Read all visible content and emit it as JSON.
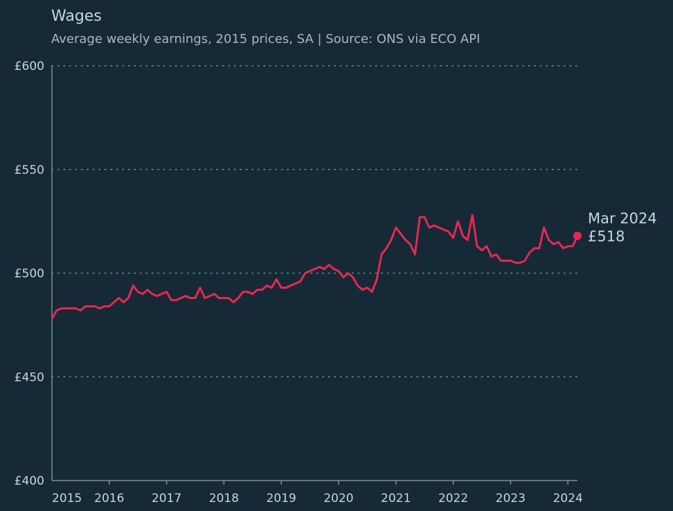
{
  "chart_data": {
    "type": "line",
    "title": "Wages",
    "subtitle": "Average weekly earnings, 2015 prices, SA | Source: ONS via ECO API",
    "xlabel": "",
    "ylabel": "",
    "ylim": [
      400,
      600
    ],
    "yticks": [
      400,
      450,
      500,
      550,
      600
    ],
    "ytick_labels": [
      "£400",
      "£450",
      "£500",
      "£550",
      "£600"
    ],
    "xlim": [
      "2015-01",
      "2024-03"
    ],
    "xticks": [
      "2015",
      "2016",
      "2017",
      "2018",
      "2019",
      "2020",
      "2021",
      "2022",
      "2023",
      "2024"
    ],
    "grid": "horizontal dotted",
    "series": [
      {
        "color": "#e8294f",
        "points": [
          [
            "2015-01",
            478
          ],
          [
            "2015-02",
            482
          ],
          [
            "2015-03",
            483
          ],
          [
            "2015-04",
            483
          ],
          [
            "2015-05",
            483
          ],
          [
            "2015-06",
            483
          ],
          [
            "2015-07",
            482
          ],
          [
            "2015-08",
            484
          ],
          [
            "2015-09",
            484
          ],
          [
            "2015-10",
            484
          ],
          [
            "2015-11",
            483
          ],
          [
            "2015-12",
            484
          ],
          [
            "2016-01",
            484
          ],
          [
            "2016-02",
            486
          ],
          [
            "2016-03",
            488
          ],
          [
            "2016-04",
            486
          ],
          [
            "2016-05",
            488
          ],
          [
            "2016-06",
            494
          ],
          [
            "2016-07",
            491
          ],
          [
            "2016-08",
            490
          ],
          [
            "2016-09",
            492
          ],
          [
            "2016-10",
            490
          ],
          [
            "2016-11",
            489
          ],
          [
            "2016-12",
            490
          ],
          [
            "2017-01",
            491
          ],
          [
            "2017-02",
            487
          ],
          [
            "2017-03",
            487
          ],
          [
            "2017-04",
            488
          ],
          [
            "2017-05",
            489
          ],
          [
            "2017-06",
            488
          ],
          [
            "2017-07",
            488
          ],
          [
            "2017-08",
            493
          ],
          [
            "2017-09",
            488
          ],
          [
            "2017-10",
            489
          ],
          [
            "2017-11",
            490
          ],
          [
            "2017-12",
            488
          ],
          [
            "2018-01",
            488
          ],
          [
            "2018-02",
            488
          ],
          [
            "2018-03",
            486
          ],
          [
            "2018-04",
            488
          ],
          [
            "2018-05",
            491
          ],
          [
            "2018-06",
            491
          ],
          [
            "2018-07",
            490
          ],
          [
            "2018-08",
            492
          ],
          [
            "2018-09",
            492
          ],
          [
            "2018-10",
            494
          ],
          [
            "2018-11",
            493
          ],
          [
            "2018-12",
            497
          ],
          [
            "2019-01",
            493
          ],
          [
            "2019-02",
            493
          ],
          [
            "2019-03",
            494
          ],
          [
            "2019-04",
            495
          ],
          [
            "2019-05",
            496
          ],
          [
            "2019-06",
            500
          ],
          [
            "2019-07",
            501
          ],
          [
            "2019-08",
            502
          ],
          [
            "2019-09",
            503
          ],
          [
            "2019-10",
            502
          ],
          [
            "2019-11",
            504
          ],
          [
            "2019-12",
            502
          ],
          [
            "2020-01",
            501
          ],
          [
            "2020-02",
            498
          ],
          [
            "2020-03",
            500
          ],
          [
            "2020-04",
            498
          ],
          [
            "2020-05",
            494
          ],
          [
            "2020-06",
            492
          ],
          [
            "2020-07",
            493
          ],
          [
            "2020-08",
            491
          ],
          [
            "2020-09",
            497
          ],
          [
            "2020-10",
            509
          ],
          [
            "2020-11",
            512
          ],
          [
            "2020-12",
            516
          ],
          [
            "2021-01",
            522
          ],
          [
            "2021-02",
            519
          ],
          [
            "2021-03",
            516
          ],
          [
            "2021-04",
            514
          ],
          [
            "2021-05",
            509
          ],
          [
            "2021-06",
            527
          ],
          [
            "2021-07",
            527
          ],
          [
            "2021-08",
            522
          ],
          [
            "2021-09",
            523
          ],
          [
            "2021-10",
            522
          ],
          [
            "2021-11",
            521
          ],
          [
            "2021-12",
            520
          ],
          [
            "2022-01",
            517
          ],
          [
            "2022-02",
            525
          ],
          [
            "2022-03",
            518
          ],
          [
            "2022-04",
            516
          ],
          [
            "2022-05",
            528
          ],
          [
            "2022-06",
            513
          ],
          [
            "2022-07",
            511
          ],
          [
            "2022-08",
            513
          ],
          [
            "2022-09",
            508
          ],
          [
            "2022-10",
            509
          ],
          [
            "2022-11",
            506
          ],
          [
            "2022-12",
            506
          ],
          [
            "2023-01",
            506
          ],
          [
            "2023-02",
            505
          ],
          [
            "2023-03",
            505
          ],
          [
            "2023-04",
            506
          ],
          [
            "2023-05",
            510
          ],
          [
            "2023-06",
            512
          ],
          [
            "2023-07",
            512
          ],
          [
            "2023-08",
            522
          ],
          [
            "2023-09",
            516
          ],
          [
            "2023-10",
            514
          ],
          [
            "2023-11",
            515
          ],
          [
            "2023-12",
            512
          ],
          [
            "2024-01",
            513
          ],
          [
            "2024-02",
            513
          ],
          [
            "2024-03",
            518
          ]
        ]
      }
    ],
    "annotation": {
      "x": "2024-03",
      "label": "Mar 2024",
      "value": "£518"
    }
  }
}
